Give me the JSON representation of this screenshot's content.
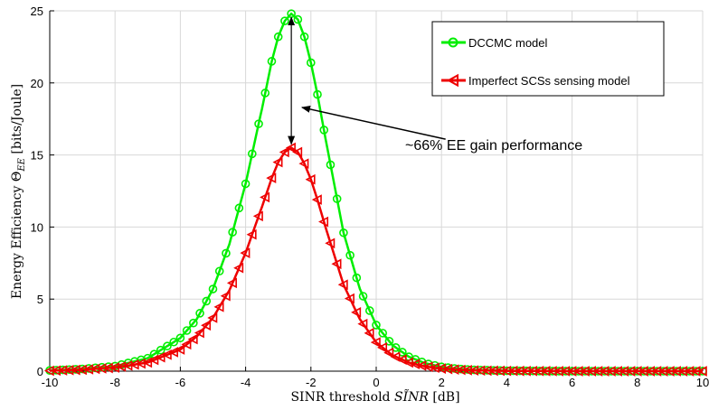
{
  "chart_data": {
    "type": "line",
    "xlabel": "SINR threshold ",
    "xlabel_symbol": "SĨNR",
    "xlabel_unit": " [dB]",
    "ylabel": "Energy Efficiency Θ",
    "ylabel_sub": "EE",
    "ylabel_unit": " [bits/Joule]",
    "xlim": [
      -10,
      10
    ],
    "ylim": [
      0,
      25
    ],
    "xticks": [
      -10,
      -8,
      -6,
      -4,
      -2,
      0,
      2,
      4,
      6,
      8,
      10
    ],
    "yticks": [
      0,
      5,
      10,
      15,
      20,
      25
    ],
    "grid": true,
    "legend_position": "top-right",
    "x": [
      -10,
      -9,
      -8,
      -7,
      -6,
      -5.5,
      -5,
      -4.5,
      -4,
      -3.5,
      -3.2,
      -3,
      -2.8,
      -2.6,
      -2.4,
      -2.2,
      -2,
      -1.8,
      -1.5,
      -1,
      -0.5,
      0,
      0.5,
      1,
      1.5,
      2,
      2.5,
      3,
      4,
      5,
      6,
      7,
      8,
      9,
      10
    ],
    "series": [
      {
        "name": "DCCMC model",
        "color": "#00ee00",
        "marker": "circle",
        "values": [
          0.05,
          0.15,
          0.35,
          0.9,
          2.3,
          3.6,
          5.7,
          8.8,
          13.0,
          18.2,
          21.5,
          23.2,
          24.3,
          24.8,
          24.4,
          23.2,
          21.4,
          19.2,
          15.5,
          9.6,
          5.7,
          3.2,
          1.8,
          1.0,
          0.55,
          0.3,
          0.16,
          0.09,
          0.03,
          0.01,
          0.0,
          0.0,
          0.0,
          0.0,
          0.0
        ]
      },
      {
        "name": "Imperfect SCSs sensing model",
        "color": "#ee0000",
        "marker": "triangle-left",
        "values": [
          0.03,
          0.1,
          0.25,
          0.6,
          1.5,
          2.4,
          3.7,
          5.6,
          8.2,
          11.4,
          13.4,
          14.5,
          15.2,
          15.5,
          15.2,
          14.4,
          13.3,
          11.9,
          9.6,
          6.0,
          3.6,
          2.0,
          1.1,
          0.6,
          0.33,
          0.18,
          0.1,
          0.05,
          0.02,
          0.01,
          0.0,
          0.0,
          0.0,
          0.0,
          0.0
        ]
      }
    ],
    "annotation": {
      "text": "~66% EE gain performance",
      "gap_x": -2.6,
      "gap_from": 24.8,
      "gap_to": 15.5,
      "arrow_from": [
        -1.2,
        17.6
      ],
      "arrow_to": [
        -2.55,
        18.8
      ]
    }
  }
}
